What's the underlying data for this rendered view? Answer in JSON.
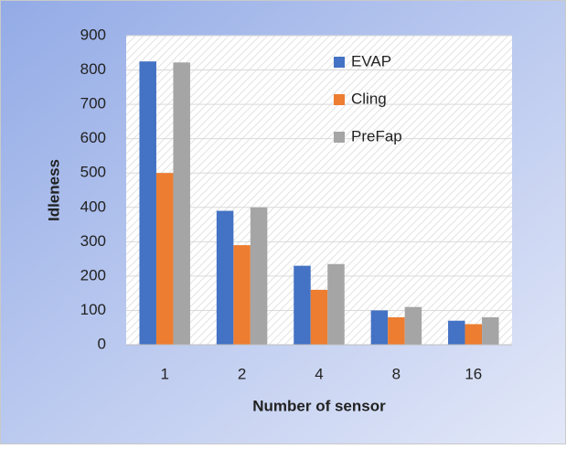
{
  "chart_data": {
    "type": "bar",
    "categories": [
      "1",
      "2",
      "4",
      "8",
      "16"
    ],
    "series": [
      {
        "name": "EVAP",
        "color": "#4472c4",
        "values": [
          825,
          390,
          230,
          100,
          70
        ]
      },
      {
        "name": "Cling",
        "color": "#ed7d31",
        "values": [
          500,
          290,
          160,
          80,
          60
        ]
      },
      {
        "name": "PreFap",
        "color": "#a5a5a5",
        "values": [
          822,
          400,
          235,
          110,
          80
        ]
      }
    ],
    "x_label": "Number of sensor",
    "y_label": "Idleness",
    "ylim": [
      0,
      900
    ],
    "yticks": [
      0,
      100,
      200,
      300,
      400,
      500,
      600,
      700,
      800,
      900
    ],
    "grid": true,
    "legend": "top-right"
  }
}
